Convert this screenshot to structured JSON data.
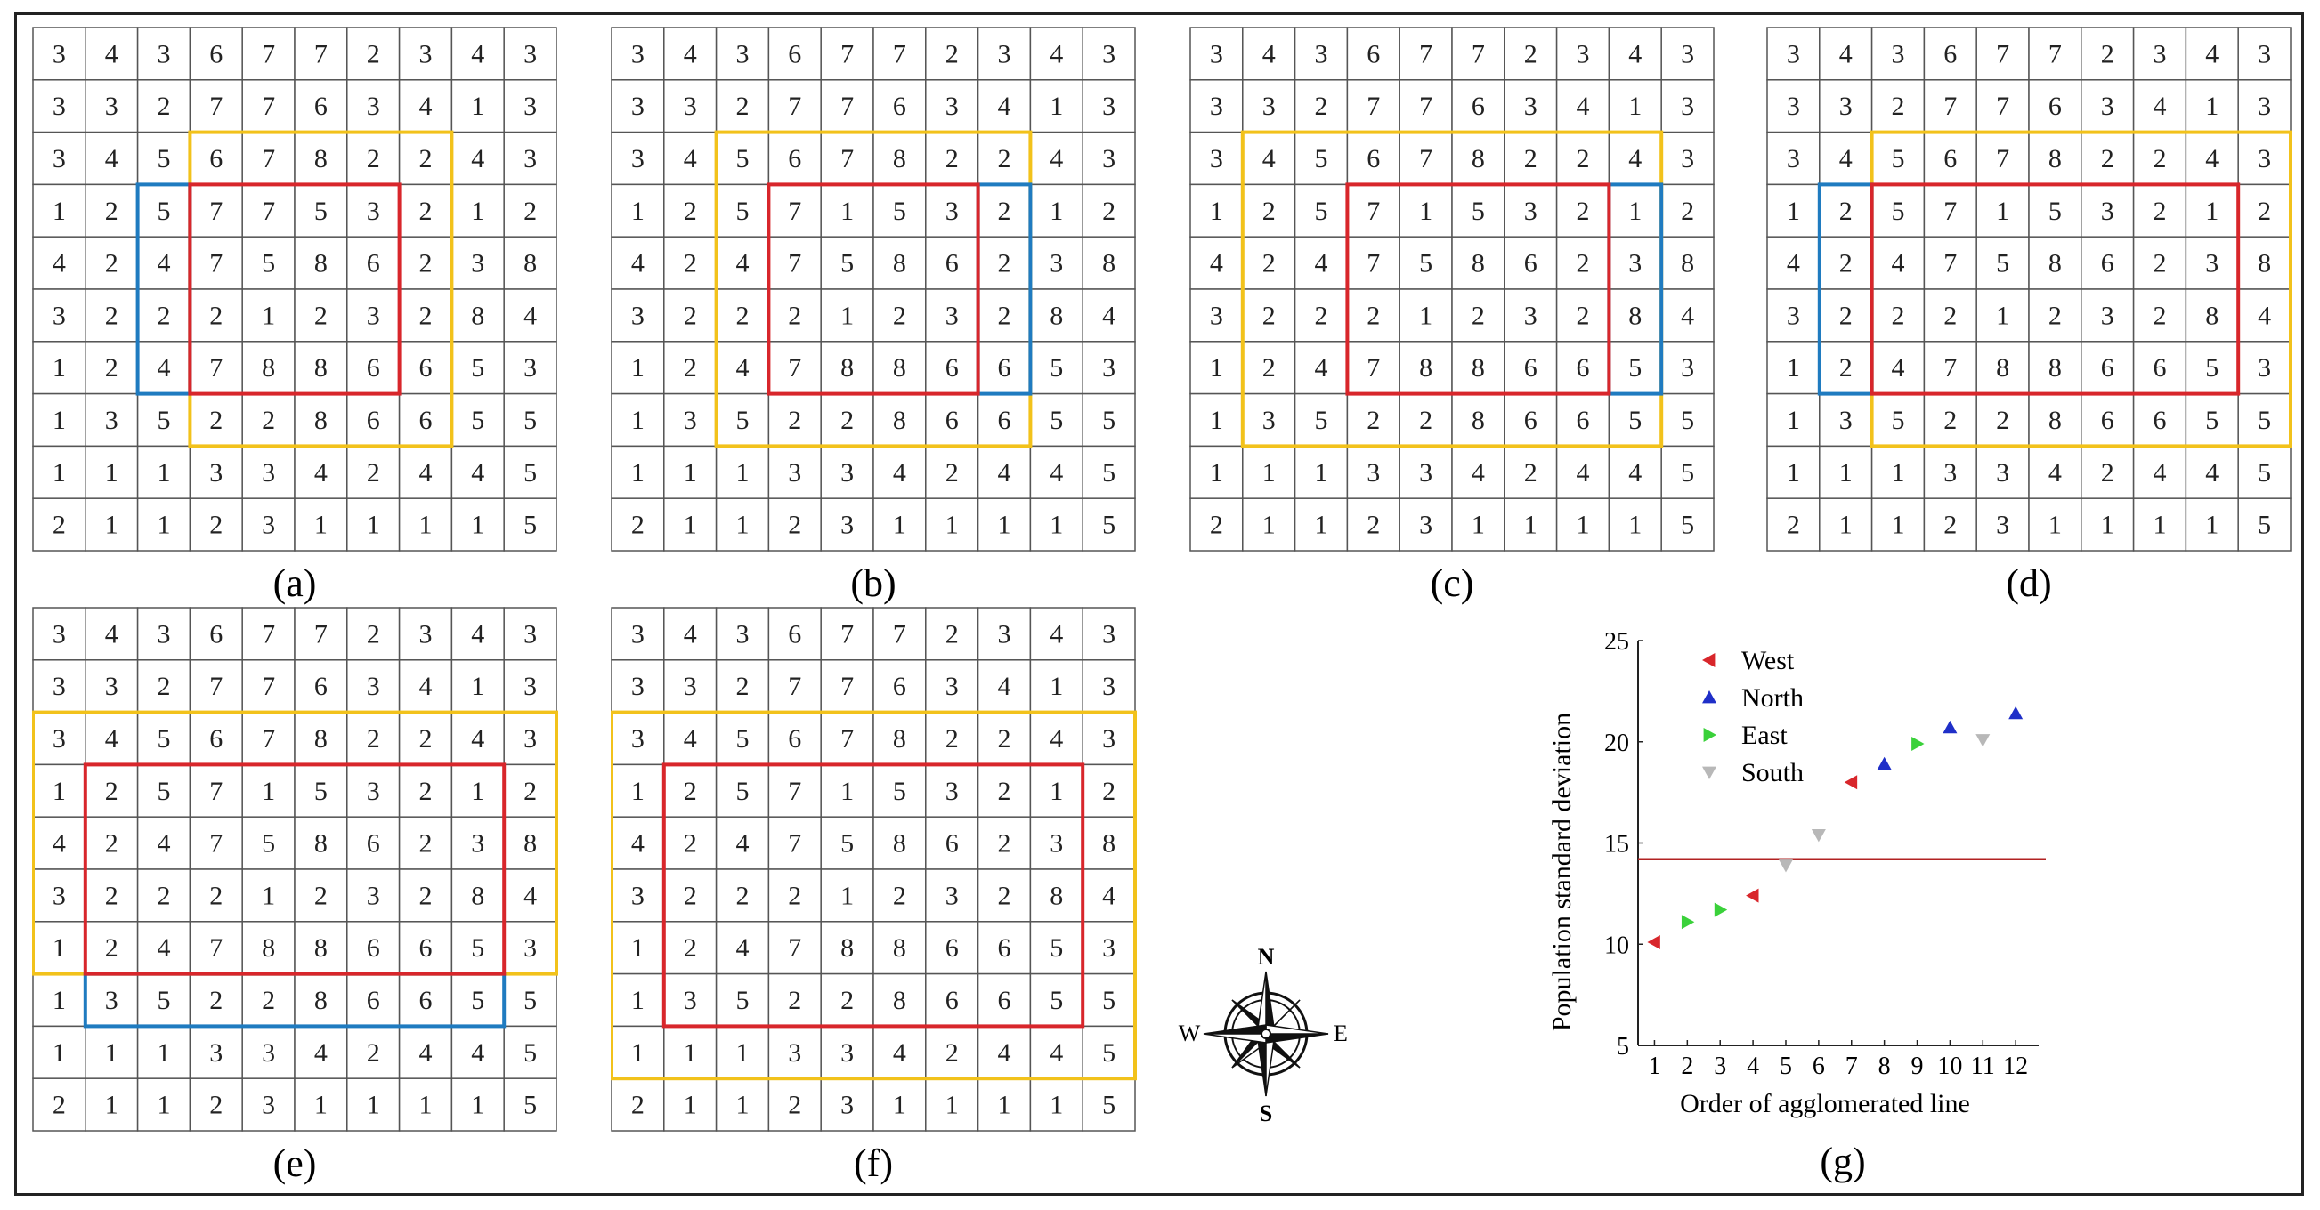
{
  "matrix": [
    [
      3,
      4,
      3,
      6,
      7,
      7,
      2,
      3,
      4,
      3
    ],
    [
      3,
      3,
      2,
      7,
      7,
      6,
      3,
      4,
      1,
      3
    ],
    [
      3,
      4,
      5,
      6,
      7,
      8,
      2,
      2,
      4,
      3
    ],
    [
      1,
      2,
      5,
      7,
      1,
      5,
      3,
      2,
      1,
      2
    ],
    [
      4,
      2,
      4,
      7,
      5,
      8,
      6,
      2,
      3,
      8
    ],
    [
      3,
      2,
      2,
      2,
      1,
      2,
      3,
      2,
      8,
      4
    ],
    [
      1,
      2,
      4,
      7,
      8,
      8,
      6,
      6,
      5,
      3
    ],
    [
      1,
      3,
      5,
      2,
      2,
      8,
      6,
      6,
      5,
      5
    ],
    [
      1,
      1,
      1,
      3,
      3,
      4,
      2,
      4,
      4,
      5
    ],
    [
      2,
      1,
      1,
      2,
      3,
      1,
      1,
      1,
      1,
      5
    ]
  ],
  "colors": {
    "red": "#d8262b",
    "blue": "#1f7bc0",
    "yellow": "#f2c21b",
    "grid": "#555555"
  },
  "panels": [
    {
      "caption": "(a)",
      "red": [
        3,
        3,
        6,
        6
      ],
      "blue": [
        3,
        2,
        6,
        2
      ],
      "yellow": [
        2,
        3,
        7,
        7
      ],
      "override": {
        "3,4": 7
      }
    },
    {
      "caption": "(b)",
      "red": [
        3,
        3,
        6,
        6
      ],
      "blue": [
        3,
        7,
        6,
        7
      ],
      "yellow": [
        2,
        2,
        7,
        7
      ]
    },
    {
      "caption": "(c)",
      "red": [
        3,
        3,
        6,
        7
      ],
      "blue": [
        3,
        8,
        6,
        8
      ],
      "yellow": [
        2,
        1,
        7,
        8
      ]
    },
    {
      "caption": "(d)",
      "red": [
        3,
        2,
        6,
        8
      ],
      "blue": [
        3,
        1,
        6,
        1
      ],
      "yellow": [
        2,
        2,
        7,
        9
      ]
    },
    {
      "caption": "(e)",
      "red": [
        3,
        1,
        6,
        8
      ],
      "blue": [
        7,
        1,
        7,
        8
      ],
      "yellow": [
        2,
        0,
        6,
        9
      ]
    },
    {
      "caption": "(f)",
      "red": [
        3,
        1,
        7,
        8
      ],
      "blue": null,
      "yellow": [
        2,
        0,
        8,
        9
      ]
    }
  ],
  "compass": {
    "n": "N",
    "s": "S",
    "e": "E",
    "w": "W"
  },
  "chart_data": {
    "type": "scatter",
    "caption": "(g)",
    "xlabel": "Order of agglomerated line",
    "ylabel": "Population standard deviation",
    "xticks": [
      1,
      2,
      3,
      4,
      5,
      6,
      7,
      8,
      9,
      10,
      11,
      12
    ],
    "yticks": [
      5,
      10,
      15,
      20,
      25
    ],
    "xlim": [
      0.5,
      12.7
    ],
    "ylim": [
      5,
      25
    ],
    "reference_line": 14.2,
    "reference_color": "#b22222",
    "legend": [
      {
        "name": "West",
        "color": "#d8262b",
        "marker": "left"
      },
      {
        "name": "North",
        "color": "#1f2fc8",
        "marker": "up"
      },
      {
        "name": "East",
        "color": "#3ad13a",
        "marker": "right"
      },
      {
        "name": "South",
        "color": "#b8b8b8",
        "marker": "down"
      }
    ],
    "points": [
      {
        "x": 1,
        "y": 10.1,
        "dir": "West"
      },
      {
        "x": 2,
        "y": 11.1,
        "dir": "East"
      },
      {
        "x": 3,
        "y": 11.7,
        "dir": "East"
      },
      {
        "x": 4,
        "y": 12.4,
        "dir": "West"
      },
      {
        "x": 5,
        "y": 13.9,
        "dir": "South"
      },
      {
        "x": 6,
        "y": 15.4,
        "dir": "South"
      },
      {
        "x": 7,
        "y": 18.0,
        "dir": "West"
      },
      {
        "x": 8,
        "y": 18.9,
        "dir": "North"
      },
      {
        "x": 9,
        "y": 19.9,
        "dir": "East"
      },
      {
        "x": 10,
        "y": 20.7,
        "dir": "North"
      },
      {
        "x": 11,
        "y": 20.1,
        "dir": "South"
      },
      {
        "x": 12,
        "y": 21.4,
        "dir": "North"
      }
    ]
  }
}
